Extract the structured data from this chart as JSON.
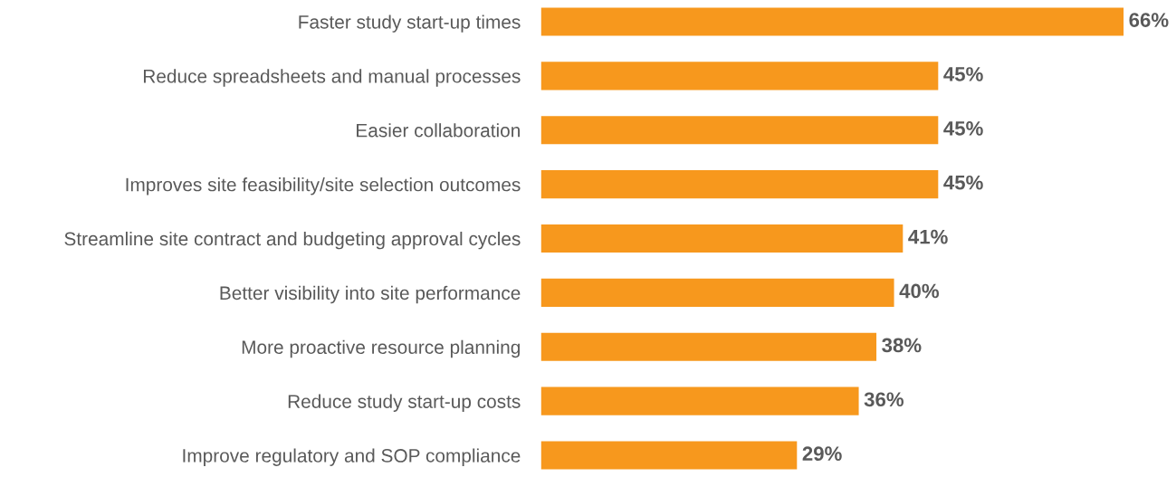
{
  "chart_data": {
    "type": "bar",
    "orientation": "horizontal",
    "categories": [
      "Faster study start-up times",
      "Reduce spreadsheets and manual processes",
      "Easier collaboration",
      "Improves site feasibility/site selection outcomes",
      "Streamline site contract and budgeting approval cycles",
      "Better visibility into site performance",
      "More proactive resource planning",
      "Reduce study start-up costs",
      "Improve regulatory and SOP compliance"
    ],
    "values": [
      66,
      45,
      45,
      45,
      41,
      40,
      38,
      36,
      29
    ],
    "value_labels": [
      "66%",
      "45%",
      "45%",
      "45%",
      "41%",
      "40%",
      "38%",
      "36%",
      "29%"
    ],
    "color": "#f7981d",
    "tick_labels": "y",
    "grid": false,
    "legend": false
  }
}
